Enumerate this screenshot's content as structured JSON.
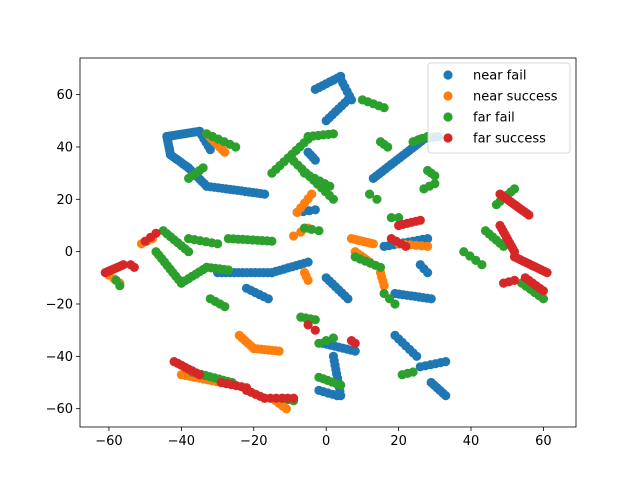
{
  "chart_data": {
    "type": "scatter",
    "title": "",
    "xlabel": "",
    "ylabel": "",
    "xlim": [
      -68,
      69
    ],
    "ylim": [
      -67,
      74
    ],
    "xticks": [
      -60,
      -40,
      -20,
      0,
      20,
      40,
      60
    ],
    "yticks": [
      -60,
      -40,
      -20,
      0,
      20,
      40,
      60
    ],
    "xtick_labels": [
      "−60",
      "−40",
      "−20",
      "0",
      "20",
      "40",
      "60"
    ],
    "ytick_labels": [
      "−60",
      "−40",
      "−20",
      "0",
      "20",
      "40",
      "60"
    ],
    "grid": false,
    "legend_position": "top-right",
    "series": [
      {
        "name": "near fail",
        "color": "#1f77b4",
        "clusters": [
          {
            "from": [
              -44,
              44
            ],
            "to": [
              -35,
              46
            ],
            "n": 12
          },
          {
            "from": [
              -44,
              44
            ],
            "to": [
              -43,
              37
            ],
            "n": 8
          },
          {
            "from": [
              -43,
              37
            ],
            "to": [
              -38,
              32
            ],
            "n": 8
          },
          {
            "from": [
              -38,
              32
            ],
            "to": [
              -33,
              25
            ],
            "n": 9
          },
          {
            "from": [
              -33,
              25
            ],
            "to": [
              -17,
              22
            ],
            "n": 16
          },
          {
            "from": [
              -35,
              46
            ],
            "to": [
              -32,
              39
            ],
            "n": 6
          },
          {
            "from": [
              -30,
              -8
            ],
            "to": [
              -15,
              -8
            ],
            "n": 14
          },
          {
            "from": [
              -15,
              -8
            ],
            "to": [
              -5,
              -4
            ],
            "n": 10
          },
          {
            "from": [
              -22,
              -14
            ],
            "to": [
              -16,
              -18
            ],
            "n": 6
          },
          {
            "from": [
              -3,
              62
            ],
            "to": [
              4,
              67
            ],
            "n": 8
          },
          {
            "from": [
              4,
              66
            ],
            "to": [
              7,
              58
            ],
            "n": 6
          },
          {
            "from": [
              6,
              58
            ],
            "to": [
              0,
              50
            ],
            "n": 8
          },
          {
            "from": [
              -5,
              38
            ],
            "to": [
              -3,
              35
            ],
            "n": 4
          },
          {
            "from": [
              13,
              28
            ],
            "to": [
              27,
              43
            ],
            "n": 18
          },
          {
            "from": [
              26,
              43
            ],
            "to": [
              31,
              44
            ],
            "n": 5
          },
          {
            "from": [
              0,
              -10
            ],
            "to": [
              6,
              -18
            ],
            "n": 8
          },
          {
            "from": [
              -1,
              -35
            ],
            "to": [
              8,
              -38
            ],
            "n": 9
          },
          {
            "from": [
              2,
              -40
            ],
            "to": [
              4,
              -55
            ],
            "n": 10
          },
          {
            "from": [
              -2,
              -53
            ],
            "to": [
              3,
              -55
            ],
            "n": 5
          },
          {
            "from": [
              19,
              -16
            ],
            "to": [
              29,
              -18
            ],
            "n": 10
          },
          {
            "from": [
              19,
              -32
            ],
            "to": [
              25,
              -40
            ],
            "n": 7
          },
          {
            "from": [
              26,
              -44
            ],
            "to": [
              33,
              -42
            ],
            "n": 6
          },
          {
            "from": [
              29,
              -50
            ],
            "to": [
              33,
              -55
            ],
            "n": 6
          },
          {
            "from": [
              16,
              2
            ],
            "to": [
              28,
              5
            ],
            "n": 10
          },
          {
            "from": [
              26,
              -5
            ],
            "to": [
              28,
              -8
            ],
            "n": 3
          },
          {
            "from": [
              -8,
              15
            ],
            "to": [
              -3,
              16
            ],
            "n": 4
          }
        ]
      },
      {
        "name": "near success",
        "color": "#ff7f0e",
        "clusters": [
          {
            "from": [
              -33,
              45
            ],
            "to": [
              -28,
              38
            ],
            "n": 8
          },
          {
            "from": [
              -24,
              -32
            ],
            "to": [
              -20,
              -37
            ],
            "n": 6
          },
          {
            "from": [
              -20,
              -37
            ],
            "to": [
              -13,
              -38
            ],
            "n": 8
          },
          {
            "from": [
              -8,
              15
            ],
            "to": [
              -4,
              22
            ],
            "n": 5
          },
          {
            "from": [
              7,
              5
            ],
            "to": [
              13,
              3
            ],
            "n": 8
          },
          {
            "from": [
              8,
              0
            ],
            "to": [
              12,
              -4
            ],
            "n": 6
          },
          {
            "from": [
              15,
              -8
            ],
            "to": [
              16,
              -13
            ],
            "n": 4
          },
          {
            "from": [
              -40,
              -47
            ],
            "to": [
              -29,
              -50
            ],
            "n": 10
          },
          {
            "from": [
              -14,
              -57
            ],
            "to": [
              -11,
              -60
            ],
            "n": 4
          },
          {
            "from": [
              20,
              3
            ],
            "to": [
              28,
              2
            ],
            "n": 6
          },
          {
            "from": [
              -51,
              3
            ],
            "to": [
              -48,
              5
            ],
            "n": 3
          },
          {
            "from": [
              -60,
              -9
            ],
            "to": [
              -57,
              -12
            ],
            "n": 3
          },
          {
            "from": [
              -9,
              6
            ],
            "to": [
              -5,
              9
            ],
            "n": 3
          },
          {
            "from": [
              -6,
              -8
            ],
            "to": [
              -5,
              -11
            ],
            "n": 3
          }
        ]
      },
      {
        "name": "far fail",
        "color": "#2ca02c",
        "clusters": [
          {
            "from": [
              -45,
              8
            ],
            "to": [
              -38,
              0
            ],
            "n": 8
          },
          {
            "from": [
              -47,
              0
            ],
            "to": [
              -40,
              -12
            ],
            "n": 10
          },
          {
            "from": [
              -40,
              -12
            ],
            "to": [
              -33,
              -6
            ],
            "n": 8
          },
          {
            "from": [
              -33,
              -6
            ],
            "to": [
              -27,
              -7
            ],
            "n": 6
          },
          {
            "from": [
              -38,
              28
            ],
            "to": [
              -34,
              32
            ],
            "n": 5
          },
          {
            "from": [
              -33,
              45
            ],
            "to": [
              -25,
              40
            ],
            "n": 6
          },
          {
            "from": [
              -38,
              5
            ],
            "to": [
              -30,
              3
            ],
            "n": 6
          },
          {
            "from": [
              -27,
              5
            ],
            "to": [
              -15,
              4
            ],
            "n": 10
          },
          {
            "from": [
              -32,
              -18
            ],
            "to": [
              -28,
              -21
            ],
            "n": 4
          },
          {
            "from": [
              -15,
              30
            ],
            "to": [
              -5,
              43
            ],
            "n": 10
          },
          {
            "from": [
              -10,
              36
            ],
            "to": [
              2,
              20
            ],
            "n": 12
          },
          {
            "from": [
              -5,
              44
            ],
            "to": [
              2,
              45
            ],
            "n": 6
          },
          {
            "from": [
              -6,
              9
            ],
            "to": [
              -2,
              8
            ],
            "n": 3
          },
          {
            "from": [
              -7,
              -25
            ],
            "to": [
              -3,
              -26
            ],
            "n": 4
          },
          {
            "from": [
              -2,
              -35
            ],
            "to": [
              2,
              -33
            ],
            "n": 3
          },
          {
            "from": [
              -2,
              -48
            ],
            "to": [
              4,
              -51
            ],
            "n": 6
          },
          {
            "from": [
              10,
              58
            ],
            "to": [
              16,
              55
            ],
            "n": 5
          },
          {
            "from": [
              15,
              42
            ],
            "to": [
              17,
              40
            ],
            "n": 3
          },
          {
            "from": [
              24,
              42
            ],
            "to": [
              28,
              44
            ],
            "n": 4
          },
          {
            "from": [
              27,
              24
            ],
            "to": [
              30,
              26
            ],
            "n": 3
          },
          {
            "from": [
              28,
              31
            ],
            "to": [
              30,
              29
            ],
            "n": 3
          },
          {
            "from": [
              38,
              0
            ],
            "to": [
              43,
              -5
            ],
            "n": 4
          },
          {
            "from": [
              47,
              18
            ],
            "to": [
              52,
              24
            ],
            "n": 6
          },
          {
            "from": [
              44,
              8
            ],
            "to": [
              49,
              2
            ],
            "n": 6
          },
          {
            "from": [
              54,
              -12
            ],
            "to": [
              60,
              -18
            ],
            "n": 6
          },
          {
            "from": [
              8,
              -2
            ],
            "to": [
              15,
              -6
            ],
            "n": 6
          },
          {
            "from": [
              16,
              -16
            ],
            "to": [
              19,
              -20
            ],
            "n": 3
          },
          {
            "from": [
              21,
              -47
            ],
            "to": [
              24,
              -46
            ],
            "n": 3
          },
          {
            "from": [
              18,
              13
            ],
            "to": [
              20,
              13
            ],
            "n": 2
          },
          {
            "from": [
              -37,
              -46
            ],
            "to": [
              -26,
              -50
            ],
            "n": 10
          },
          {
            "from": [
              -12,
              -56
            ],
            "to": [
              -9,
              -57
            ],
            "n": 3
          },
          {
            "from": [
              -6,
              30
            ],
            "to": [
              1,
              25
            ],
            "n": 6
          },
          {
            "from": [
              12,
              22
            ],
            "to": [
              14,
              20
            ],
            "n": 2
          },
          {
            "from": [
              -58,
              -11
            ],
            "to": [
              -57,
              -13
            ],
            "n": 2
          }
        ]
      },
      {
        "name": "far success",
        "color": "#d62728",
        "clusters": [
          {
            "from": [
              -61,
              -8
            ],
            "to": [
              -56,
              -5
            ],
            "n": 8
          },
          {
            "from": [
              -54,
              -5
            ],
            "to": [
              -53,
              -6
            ],
            "n": 2
          },
          {
            "from": [
              -50,
              4
            ],
            "to": [
              -47,
              7
            ],
            "n": 3
          },
          {
            "from": [
              -42,
              -42
            ],
            "to": [
              -35,
              -47
            ],
            "n": 8
          },
          {
            "from": [
              -29,
              -50
            ],
            "to": [
              -22,
              -52
            ],
            "n": 6
          },
          {
            "from": [
              -22,
              -53
            ],
            "to": [
              -17,
              -56
            ],
            "n": 5
          },
          {
            "from": [
              -17,
              -56
            ],
            "to": [
              -9,
              -56
            ],
            "n": 6
          },
          {
            "from": [
              -5,
              -28
            ],
            "to": [
              -3,
              -30
            ],
            "n": 2
          },
          {
            "from": [
              7,
              -34
            ],
            "to": [
              8,
              -35
            ],
            "n": 2
          },
          {
            "from": [
              20,
              10
            ],
            "to": [
              26,
              12
            ],
            "n": 6
          },
          {
            "from": [
              18,
              5
            ],
            "to": [
              22,
              2
            ],
            "n": 4
          },
          {
            "from": [
              48,
              22
            ],
            "to": [
              56,
              14
            ],
            "n": 14
          },
          {
            "from": [
              48,
              10
            ],
            "to": [
              52,
              0
            ],
            "n": 10
          },
          {
            "from": [
              52,
              -2
            ],
            "to": [
              61,
              -8
            ],
            "n": 12
          },
          {
            "from": [
              55,
              -10
            ],
            "to": [
              60,
              -15
            ],
            "n": 6
          },
          {
            "from": [
              49,
              -12
            ],
            "to": [
              52,
              -11
            ],
            "n": 3
          }
        ]
      }
    ]
  }
}
